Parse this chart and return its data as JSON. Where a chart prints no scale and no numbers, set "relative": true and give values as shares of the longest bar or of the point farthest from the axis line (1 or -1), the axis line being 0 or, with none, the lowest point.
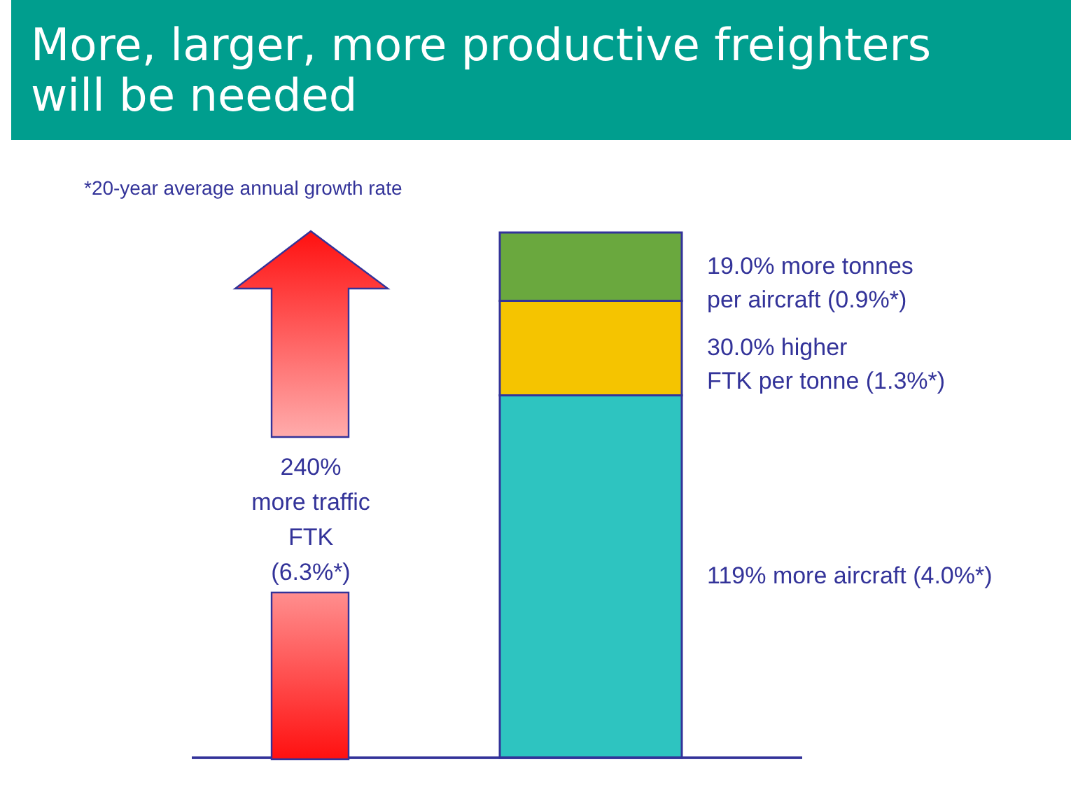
{
  "chart_data": {
    "type": "bar",
    "title": "More, larger, more productive freighters will be needed",
    "categories": [
      null
    ],
    "stacked": true,
    "relative": true,
    "series": [
      {
        "name": "119% more aircraft (4.0%*)",
        "color": "#2ec4c0",
        "values": [
          0.69
        ]
      },
      {
        "name": "30.0% higher\nFTK per tonne (1.3%*)",
        "color": "#f5c400",
        "values": [
          0.18
        ]
      },
      {
        "name": "19.0% more tonnes\nper aircraft (0.9%*)",
        "color": "#6aa83e",
        "values": [
          0.13
        ]
      }
    ],
    "annotations": [
      "*20-year average annual growth rate",
      "240%\nmore traffic\nFTK\n(6.3%*)"
    ]
  }
}
